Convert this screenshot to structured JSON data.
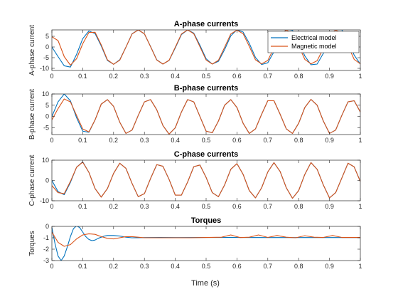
{
  "figure": {
    "xlabel": "Time (s)"
  },
  "legend": {
    "entries": [
      {
        "label": "Electrical model",
        "color": "#0072BD"
      },
      {
        "label": "Magnetic model",
        "color": "#D95319"
      }
    ]
  },
  "chart_data": [
    {
      "type": "line",
      "title": "A-phase currents",
      "xlabel": "",
      "ylabel": "A-phase current",
      "xlim": [
        0,
        1
      ],
      "ylim": [
        -11,
        8
      ],
      "xticks": [
        0,
        0.1,
        0.2,
        0.3,
        0.4,
        0.5,
        0.6,
        0.7,
        0.8,
        0.9,
        1
      ],
      "yticks": [
        5,
        0,
        -5,
        -10
      ],
      "grid": false,
      "legend": "top-right",
      "series": [
        {
          "name": "Electrical model",
          "color": "#0072BD",
          "x": [
            0,
            0.02,
            0.04,
            0.06,
            0.08,
            0.1,
            0.12,
            0.14,
            0.16,
            0.18,
            0.2,
            0.22,
            0.24,
            0.26,
            0.28,
            0.3,
            0.32,
            0.34,
            0.36,
            0.38,
            0.4,
            0.42,
            0.44,
            0.46,
            0.48,
            0.5,
            0.52,
            0.54,
            0.56,
            0.58,
            0.6,
            0.62,
            0.64,
            0.66,
            0.68,
            0.7,
            0.72,
            0.74,
            0.76,
            0.78,
            0.8,
            0.82,
            0.84,
            0.86,
            0.88,
            0.9,
            0.92,
            0.94,
            0.96,
            0.98,
            1
          ],
          "y": [
            0,
            -4.5,
            -8.8,
            -9.4,
            -3.5,
            3.9,
            7.5,
            6.3,
            0.5,
            -6.3,
            -8.1,
            -6.0,
            -0.1,
            6.2,
            8.0,
            6.1,
            0.2,
            -6.0,
            -8.0,
            -6.3,
            -0.4,
            5.8,
            8.0,
            6.5,
            0.8,
            -5.5,
            -8.0,
            -6.7,
            -1.2,
            5.2,
            8.1,
            7.0,
            1.7,
            -4.9,
            -8.2,
            -7.4,
            -2.2,
            4.6,
            8.3,
            7.8,
            2.6,
            -4.2,
            -8.3,
            -8.0,
            -3.0,
            3.9,
            8.2,
            8.0,
            3.2,
            -3.8,
            -8.0
          ]
        },
        {
          "name": "Magnetic model",
          "color": "#D95319",
          "x": [
            0,
            0.02,
            0.04,
            0.06,
            0.08,
            0.1,
            0.12,
            0.14,
            0.16,
            0.18,
            0.2,
            0.22,
            0.24,
            0.26,
            0.28,
            0.3,
            0.32,
            0.34,
            0.36,
            0.38,
            0.4,
            0.42,
            0.44,
            0.46,
            0.48,
            0.5,
            0.52,
            0.54,
            0.56,
            0.58,
            0.6,
            0.62,
            0.64,
            0.66,
            0.68,
            0.7,
            0.72,
            0.74,
            0.76,
            0.78,
            0.8,
            0.82,
            0.84,
            0.86,
            0.88,
            0.9,
            0.92,
            0.94,
            0.96,
            0.98,
            1
          ],
          "y": [
            4.8,
            3.0,
            -4.5,
            -8.5,
            -5.5,
            1.5,
            6.8,
            6.9,
            1.0,
            -6.0,
            -8.1,
            -6.2,
            -0.1,
            6.1,
            8.0,
            6.2,
            0.1,
            -6.1,
            -8.0,
            -6.2,
            -0.1,
            6.1,
            8.0,
            6.2,
            0.1,
            -6.1,
            -8.0,
            -6.2,
            -0.1,
            6.1,
            7.9,
            6.2,
            0.3,
            -6.0,
            -7.9,
            -6.3,
            -0.5,
            5.9,
            7.9,
            6.4,
            0.6,
            -5.8,
            -7.9,
            -6.4,
            -0.7,
            5.8,
            7.9,
            6.4,
            0.6,
            -5.8,
            -7.9
          ]
        }
      ]
    },
    {
      "type": "line",
      "title": "B-phase currents",
      "xlabel": "",
      "ylabel": "B-phase current",
      "xlim": [
        0,
        1
      ],
      "ylim": [
        -8,
        10
      ],
      "xticks": [
        0,
        0.1,
        0.2,
        0.3,
        0.4,
        0.5,
        0.6,
        0.7,
        0.8,
        0.9,
        1
      ],
      "yticks": [
        10,
        5,
        0,
        -5
      ],
      "grid": false,
      "series": [
        {
          "name": "Electrical model",
          "color": "#0072BD",
          "x": [
            0,
            0.02,
            0.04,
            0.06,
            0.08,
            0.1,
            0.12,
            0.14,
            0.16,
            0.18,
            0.2,
            0.22,
            0.24,
            0.26,
            0.28,
            0.3,
            0.32,
            0.34,
            0.36,
            0.38,
            0.4,
            0.42,
            0.44,
            0.46,
            0.48,
            0.5,
            0.52,
            0.54,
            0.56,
            0.58,
            0.6,
            0.62,
            0.64,
            0.66,
            0.68,
            0.7,
            0.72,
            0.74,
            0.76,
            0.78,
            0.8,
            0.82,
            0.84,
            0.86,
            0.88,
            0.9,
            0.92,
            0.94,
            0.96,
            0.98,
            1
          ],
          "y": [
            0,
            6.5,
            10.0,
            7.0,
            -0.5,
            -6.5,
            -7.0,
            -1.5,
            5.5,
            7.5,
            4.5,
            -2.5,
            -7.5,
            -6.0,
            0.5,
            6.5,
            7.5,
            3.0,
            -4.0,
            -7.8,
            -5.0,
            2.0,
            7.5,
            6.5,
            0.0,
            -6.5,
            -7.2,
            -2.0,
            5.0,
            7.5,
            4.0,
            -3.0,
            -7.5,
            -5.5,
            1.0,
            7.0,
            7.0,
            1.0,
            -5.5,
            -7.5,
            -3.0,
            4.0,
            7.6,
            5.0,
            -2.0,
            -7.5,
            -6.0,
            0.5,
            6.5,
            7.0,
            2.0
          ]
        },
        {
          "name": "Magnetic model",
          "color": "#D95319",
          "x": [
            0,
            0.02,
            0.04,
            0.06,
            0.08,
            0.1,
            0.12,
            0.14,
            0.16,
            0.18,
            0.2,
            0.22,
            0.24,
            0.26,
            0.28,
            0.3,
            0.32,
            0.34,
            0.36,
            0.38,
            0.4,
            0.42,
            0.44,
            0.46,
            0.48,
            0.5,
            0.52,
            0.54,
            0.56,
            0.58,
            0.6,
            0.62,
            0.64,
            0.66,
            0.68,
            0.7,
            0.72,
            0.74,
            0.76,
            0.78,
            0.8,
            0.82,
            0.84,
            0.86,
            0.88,
            0.9,
            0.92,
            0.94,
            0.96,
            0.98,
            1
          ],
          "y": [
            -1.5,
            3.5,
            7.8,
            6.5,
            0.5,
            -5.5,
            -6.8,
            -1.5,
            5.5,
            7.5,
            4.5,
            -2.5,
            -7.5,
            -6.0,
            0.5,
            6.5,
            7.5,
            3.0,
            -4.0,
            -7.8,
            -5.0,
            2.0,
            7.5,
            6.5,
            0.0,
            -6.5,
            -7.2,
            -2.0,
            5.0,
            7.5,
            4.0,
            -3.0,
            -7.5,
            -5.5,
            1.0,
            7.0,
            7.0,
            1.0,
            -5.5,
            -7.5,
            -3.0,
            4.0,
            7.6,
            5.0,
            -2.0,
            -7.5,
            -6.0,
            0.5,
            6.5,
            7.0,
            2.0
          ]
        }
      ]
    },
    {
      "type": "line",
      "title": "C-phase currents",
      "xlabel": "",
      "ylabel": "C-phase current",
      "xlim": [
        0,
        1
      ],
      "ylim": [
        -10,
        10
      ],
      "xticks": [
        0,
        0.1,
        0.2,
        0.3,
        0.4,
        0.5,
        0.6,
        0.7,
        0.8,
        0.9,
        1
      ],
      "yticks": [
        10,
        0,
        -10
      ],
      "grid": false,
      "series": [
        {
          "name": "Electrical model",
          "color": "#0072BD",
          "x": [
            0,
            0.02,
            0.04,
            0.06,
            0.08,
            0.1,
            0.12,
            0.14,
            0.16,
            0.18,
            0.2,
            0.22,
            0.24,
            0.26,
            0.28,
            0.3,
            0.32,
            0.34,
            0.36,
            0.38,
            0.4,
            0.42,
            0.44,
            0.46,
            0.48,
            0.5,
            0.52,
            0.54,
            0.56,
            0.58,
            0.6,
            0.62,
            0.64,
            0.66,
            0.68,
            0.7,
            0.72,
            0.74,
            0.76,
            0.78,
            0.8,
            0.82,
            0.84,
            0.86,
            0.88,
            0.9,
            0.92,
            0.94,
            0.96,
            0.98,
            1
          ],
          "y": [
            0,
            -5.5,
            -7.0,
            -1.0,
            6.5,
            9.2,
            4.0,
            -4.0,
            -8.2,
            -4.0,
            3.5,
            8.5,
            6.0,
            -1.5,
            -8.0,
            -6.5,
            1.0,
            7.8,
            7.0,
            0.5,
            -7.2,
            -7.2,
            -0.8,
            6.8,
            7.6,
            1.5,
            -6.0,
            -8.0,
            -2.2,
            5.5,
            8.3,
            3.0,
            -5.0,
            -8.6,
            -3.6,
            4.2,
            8.8,
            4.4,
            -3.6,
            -8.8,
            -5.0,
            3.0,
            8.8,
            5.5,
            -2.2,
            -8.6,
            -6.0,
            1.2,
            8.5,
            6.7,
            -0.5
          ]
        },
        {
          "name": "Magnetic model",
          "color": "#D95319",
          "x": [
            0,
            0.02,
            0.04,
            0.06,
            0.08,
            0.1,
            0.12,
            0.14,
            0.16,
            0.18,
            0.2,
            0.22,
            0.24,
            0.26,
            0.28,
            0.3,
            0.32,
            0.34,
            0.36,
            0.38,
            0.4,
            0.42,
            0.44,
            0.46,
            0.48,
            0.5,
            0.52,
            0.54,
            0.56,
            0.58,
            0.6,
            0.62,
            0.64,
            0.66,
            0.68,
            0.7,
            0.72,
            0.74,
            0.76,
            0.78,
            0.8,
            0.82,
            0.84,
            0.86,
            0.88,
            0.9,
            0.92,
            0.94,
            0.96,
            0.98,
            1
          ],
          "y": [
            -2.5,
            -6.0,
            -6.5,
            -0.5,
            6.5,
            9.0,
            4.0,
            -4.0,
            -8.2,
            -4.0,
            3.5,
            8.5,
            6.0,
            -1.5,
            -8.0,
            -6.5,
            1.0,
            7.8,
            7.0,
            0.5,
            -7.2,
            -7.2,
            -0.8,
            6.8,
            7.6,
            1.5,
            -6.0,
            -8.0,
            -2.2,
            5.5,
            8.3,
            3.0,
            -5.0,
            -8.6,
            -3.6,
            4.2,
            8.8,
            4.4,
            -3.6,
            -8.8,
            -5.0,
            3.0,
            8.8,
            5.5,
            -2.2,
            -8.6,
            -6.0,
            1.2,
            8.5,
            6.7,
            -0.5
          ]
        }
      ]
    },
    {
      "type": "line",
      "title": "Torques",
      "xlabel": "Time (s)",
      "ylabel": "Torques",
      "xlim": [
        0,
        1
      ],
      "ylim": [
        -3,
        0
      ],
      "xticks": [
        0,
        0.1,
        0.2,
        0.3,
        0.4,
        0.5,
        0.6,
        0.7,
        0.8,
        0.9,
        1
      ],
      "yticks": [
        0,
        -1,
        -2,
        -3
      ],
      "grid": false,
      "series": [
        {
          "name": "Electrical model",
          "color": "#0072BD",
          "x": [
            0,
            0.01,
            0.02,
            0.03,
            0.04,
            0.05,
            0.06,
            0.07,
            0.08,
            0.09,
            0.1,
            0.11,
            0.12,
            0.13,
            0.14,
            0.15,
            0.16,
            0.17,
            0.18,
            0.2,
            0.22,
            0.24,
            0.26,
            0.28,
            0.3,
            0.35,
            0.4,
            0.5,
            0.6,
            0.7,
            0.8,
            0.9,
            1
          ],
          "y": [
            -0.1,
            -1.5,
            -2.6,
            -3.0,
            -2.6,
            -1.8,
            -0.9,
            -0.2,
            0.05,
            -0.1,
            -0.5,
            -0.9,
            -1.15,
            -1.25,
            -1.2,
            -1.05,
            -0.95,
            -0.85,
            -0.8,
            -0.8,
            -0.85,
            -0.95,
            -1.0,
            -1.0,
            -0.98,
            -0.97,
            -0.98,
            -0.97,
            -0.97,
            -0.98,
            -0.98,
            -0.98,
            -0.98
          ]
        },
        {
          "name": "Magnetic model",
          "color": "#D95319",
          "x": [
            0,
            0.02,
            0.04,
            0.06,
            0.08,
            0.1,
            0.12,
            0.14,
            0.16,
            0.18,
            0.2,
            0.22,
            0.24,
            0.26,
            0.28,
            0.3,
            0.35,
            0.4,
            0.45,
            0.5,
            0.55,
            0.58,
            0.61,
            0.64,
            0.67,
            0.7,
            0.73,
            0.76,
            0.79,
            0.82,
            0.85,
            0.88,
            0.91,
            0.94,
            0.97,
            1
          ],
          "y": [
            -0.5,
            -1.4,
            -1.75,
            -1.6,
            -1.1,
            -0.75,
            -0.65,
            -0.7,
            -0.9,
            -1.05,
            -1.1,
            -1.0,
            -0.9,
            -0.9,
            -0.95,
            -1.0,
            -1.0,
            -1.0,
            -1.0,
            -0.97,
            -0.95,
            -0.75,
            -0.98,
            -0.95,
            -0.75,
            -0.97,
            -0.8,
            -0.95,
            -1.0,
            -0.82,
            -0.95,
            -0.97,
            -0.8,
            -0.97,
            -0.97,
            -0.97
          ]
        }
      ]
    }
  ]
}
